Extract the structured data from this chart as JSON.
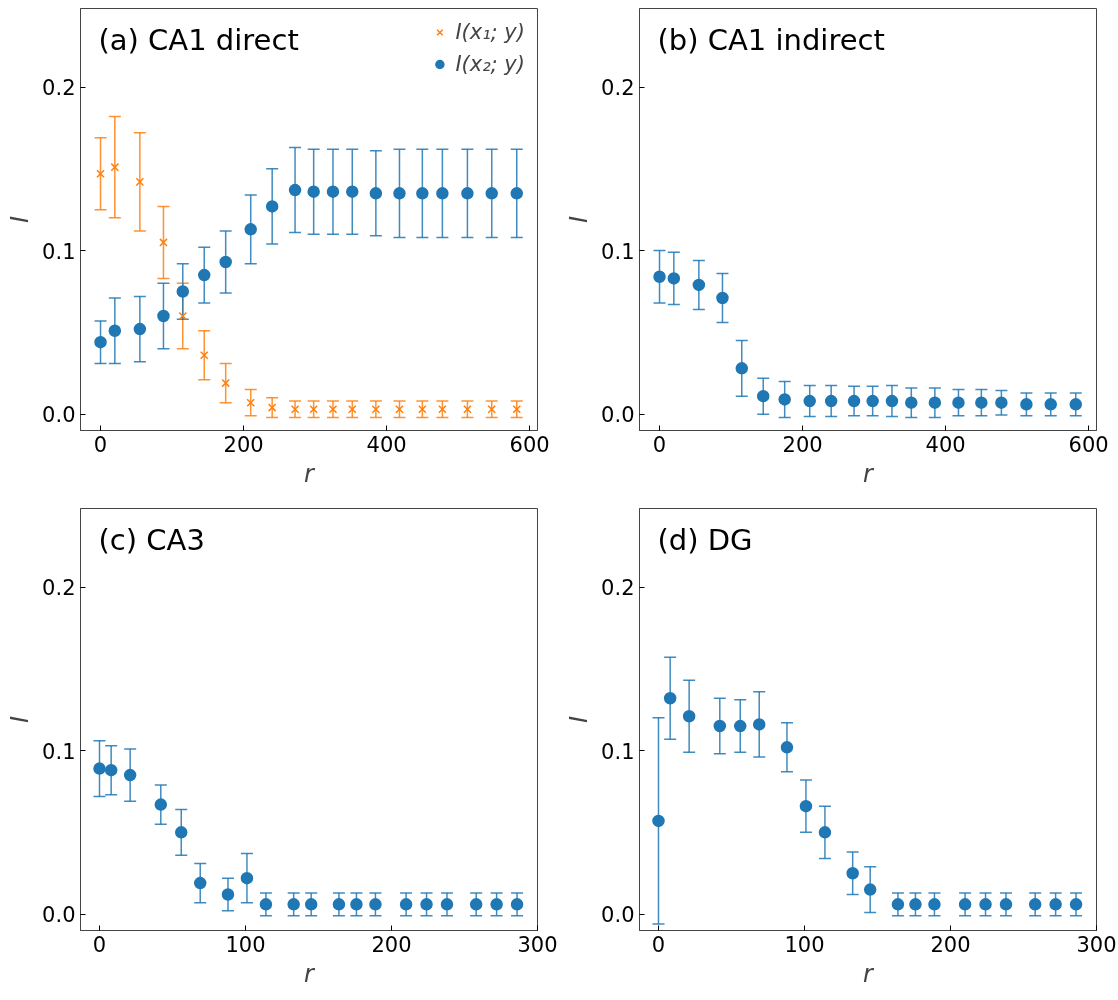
{
  "chart_data": [
    {
      "type": "scatter",
      "title": "(a) CA1 direct",
      "xlabel": "r",
      "ylabel": "I",
      "xlim": [
        -28,
        611
      ],
      "ylim": [
        -0.01,
        0.248
      ],
      "xticks": [
        0,
        200,
        400,
        600
      ],
      "yticks": [
        {
          "value": 0,
          "label": "0.0"
        },
        {
          "value": 0.1,
          "label": "0.1"
        },
        {
          "value": 0.2,
          "label": "0.2"
        }
      ],
      "grid": false,
      "legend": "top right",
      "x": [
        0,
        20,
        55,
        88,
        115,
        145,
        175,
        210,
        240,
        272,
        298,
        325,
        352,
        385,
        418,
        450,
        478,
        513,
        547,
        582
      ],
      "series": [
        {
          "name": "I(x₁; y)",
          "color": "#ff7f0e",
          "marker": "cross",
          "values": [
            0.147,
            0.151,
            0.142,
            0.105,
            0.06,
            0.036,
            0.019,
            0.007,
            0.004,
            0.003,
            0.003,
            0.003,
            0.003,
            0.003,
            0.003,
            0.003,
            0.003,
            0.003,
            0.003,
            0.003
          ],
          "errors": [
            0.022,
            0.031,
            0.03,
            0.022,
            0.02,
            0.015,
            0.012,
            0.008,
            0.006,
            0.005,
            0.005,
            0.005,
            0.005,
            0.005,
            0.005,
            0.005,
            0.005,
            0.005,
            0.005,
            0.005
          ]
        },
        {
          "name": "I(x₂; y)",
          "color": "#1f77b4",
          "marker": "circle",
          "values": [
            0.044,
            0.051,
            0.052,
            0.06,
            0.075,
            0.085,
            0.093,
            0.113,
            0.127,
            0.137,
            0.136,
            0.136,
            0.136,
            0.135,
            0.135,
            0.135,
            0.135,
            0.135,
            0.135,
            0.135
          ],
          "errors": [
            0.013,
            0.02,
            0.02,
            0.02,
            0.017,
            0.017,
            0.019,
            0.021,
            0.023,
            0.026,
            0.026,
            0.026,
            0.026,
            0.026,
            0.027,
            0.027,
            0.027,
            0.027,
            0.027,
            0.027
          ]
        }
      ]
    },
    {
      "type": "scatter",
      "title": "(b) CA1 indirect",
      "xlabel": "r",
      "ylabel": "I",
      "xlim": [
        -28,
        611
      ],
      "ylim": [
        -0.01,
        0.248
      ],
      "xticks": [
        0,
        200,
        400,
        600
      ],
      "yticks": [
        {
          "value": 0,
          "label": "0.0"
        },
        {
          "value": 0.1,
          "label": "0.1"
        },
        {
          "value": 0.2,
          "label": "0.2"
        }
      ],
      "grid": false,
      "x": [
        0,
        20,
        55,
        88,
        115,
        145,
        175,
        210,
        240,
        272,
        298,
        325,
        352,
        385,
        418,
        450,
        478,
        513,
        547,
        582
      ],
      "series": [
        {
          "color": "#1f77b4",
          "marker": "circle",
          "values": [
            0.084,
            0.083,
            0.079,
            0.071,
            0.028,
            0.011,
            0.009,
            0.008,
            0.008,
            0.008,
            0.008,
            0.008,
            0.007,
            0.007,
            0.007,
            0.007,
            0.007,
            0.006,
            0.006,
            0.006
          ],
          "errors": [
            0.016,
            0.016,
            0.015,
            0.015,
            0.017,
            0.011,
            0.011,
            0.0095,
            0.0095,
            0.009,
            0.009,
            0.0095,
            0.009,
            0.009,
            0.008,
            0.008,
            0.0075,
            0.007,
            0.007,
            0.007
          ]
        }
      ]
    },
    {
      "type": "scatter",
      "title": "(c) CA3",
      "xlabel": "r",
      "ylabel": "I",
      "xlim": [
        -13,
        300
      ],
      "ylim": [
        -0.01,
        0.248
      ],
      "xticks": [
        0,
        100,
        200,
        300
      ],
      "yticks": [
        {
          "value": 0,
          "label": "0.0"
        },
        {
          "value": 0.1,
          "label": "0.1"
        },
        {
          "value": 0.2,
          "label": "0.2"
        }
      ],
      "grid": false,
      "x": [
        0,
        8,
        21,
        42,
        56,
        69,
        88,
        101,
        114,
        133,
        145,
        164,
        176,
        189,
        210,
        224,
        238,
        258,
        272,
        286
      ],
      "series": [
        {
          "color": "#1f77b4",
          "marker": "circle",
          "values": [
            0.089,
            0.088,
            0.085,
            0.067,
            0.05,
            0.019,
            0.012,
            0.022,
            0.006,
            0.006,
            0.006,
            0.006,
            0.006,
            0.006,
            0.006,
            0.006,
            0.006,
            0.006,
            0.006,
            0.006
          ],
          "errors": [
            0.017,
            0.015,
            0.016,
            0.012,
            0.014,
            0.012,
            0.01,
            0.015,
            0.007,
            0.007,
            0.007,
            0.007,
            0.007,
            0.007,
            0.007,
            0.007,
            0.007,
            0.007,
            0.007,
            0.007
          ]
        }
      ]
    },
    {
      "type": "scatter",
      "title": "(d) DG",
      "xlabel": "r",
      "ylabel": "I",
      "xlim": [
        -13,
        300
      ],
      "ylim": [
        -0.01,
        0.248
      ],
      "xticks": [
        0,
        100,
        200,
        300
      ],
      "yticks": [
        {
          "value": 0,
          "label": "0.0"
        },
        {
          "value": 0.1,
          "label": "0.1"
        },
        {
          "value": 0.2,
          "label": "0.2"
        }
      ],
      "grid": false,
      "x": [
        0,
        8,
        21,
        42,
        56,
        69,
        88,
        101,
        114,
        133,
        145,
        164,
        176,
        189,
        210,
        224,
        238,
        258,
        272,
        286
      ],
      "series": [
        {
          "color": "#1f77b4",
          "marker": "circle",
          "values": [
            0.057,
            0.132,
            0.121,
            0.115,
            0.115,
            0.116,
            0.102,
            0.066,
            0.05,
            0.025,
            0.015,
            0.006,
            0.006,
            0.006,
            0.006,
            0.006,
            0.006,
            0.006,
            0.006,
            0.006
          ],
          "errors": [
            0.063,
            0.025,
            0.022,
            0.017,
            0.016,
            0.02,
            0.015,
            0.016,
            0.016,
            0.013,
            0.014,
            0.007,
            0.007,
            0.007,
            0.007,
            0.007,
            0.007,
            0.007,
            0.007,
            0.007
          ]
        }
      ]
    }
  ]
}
